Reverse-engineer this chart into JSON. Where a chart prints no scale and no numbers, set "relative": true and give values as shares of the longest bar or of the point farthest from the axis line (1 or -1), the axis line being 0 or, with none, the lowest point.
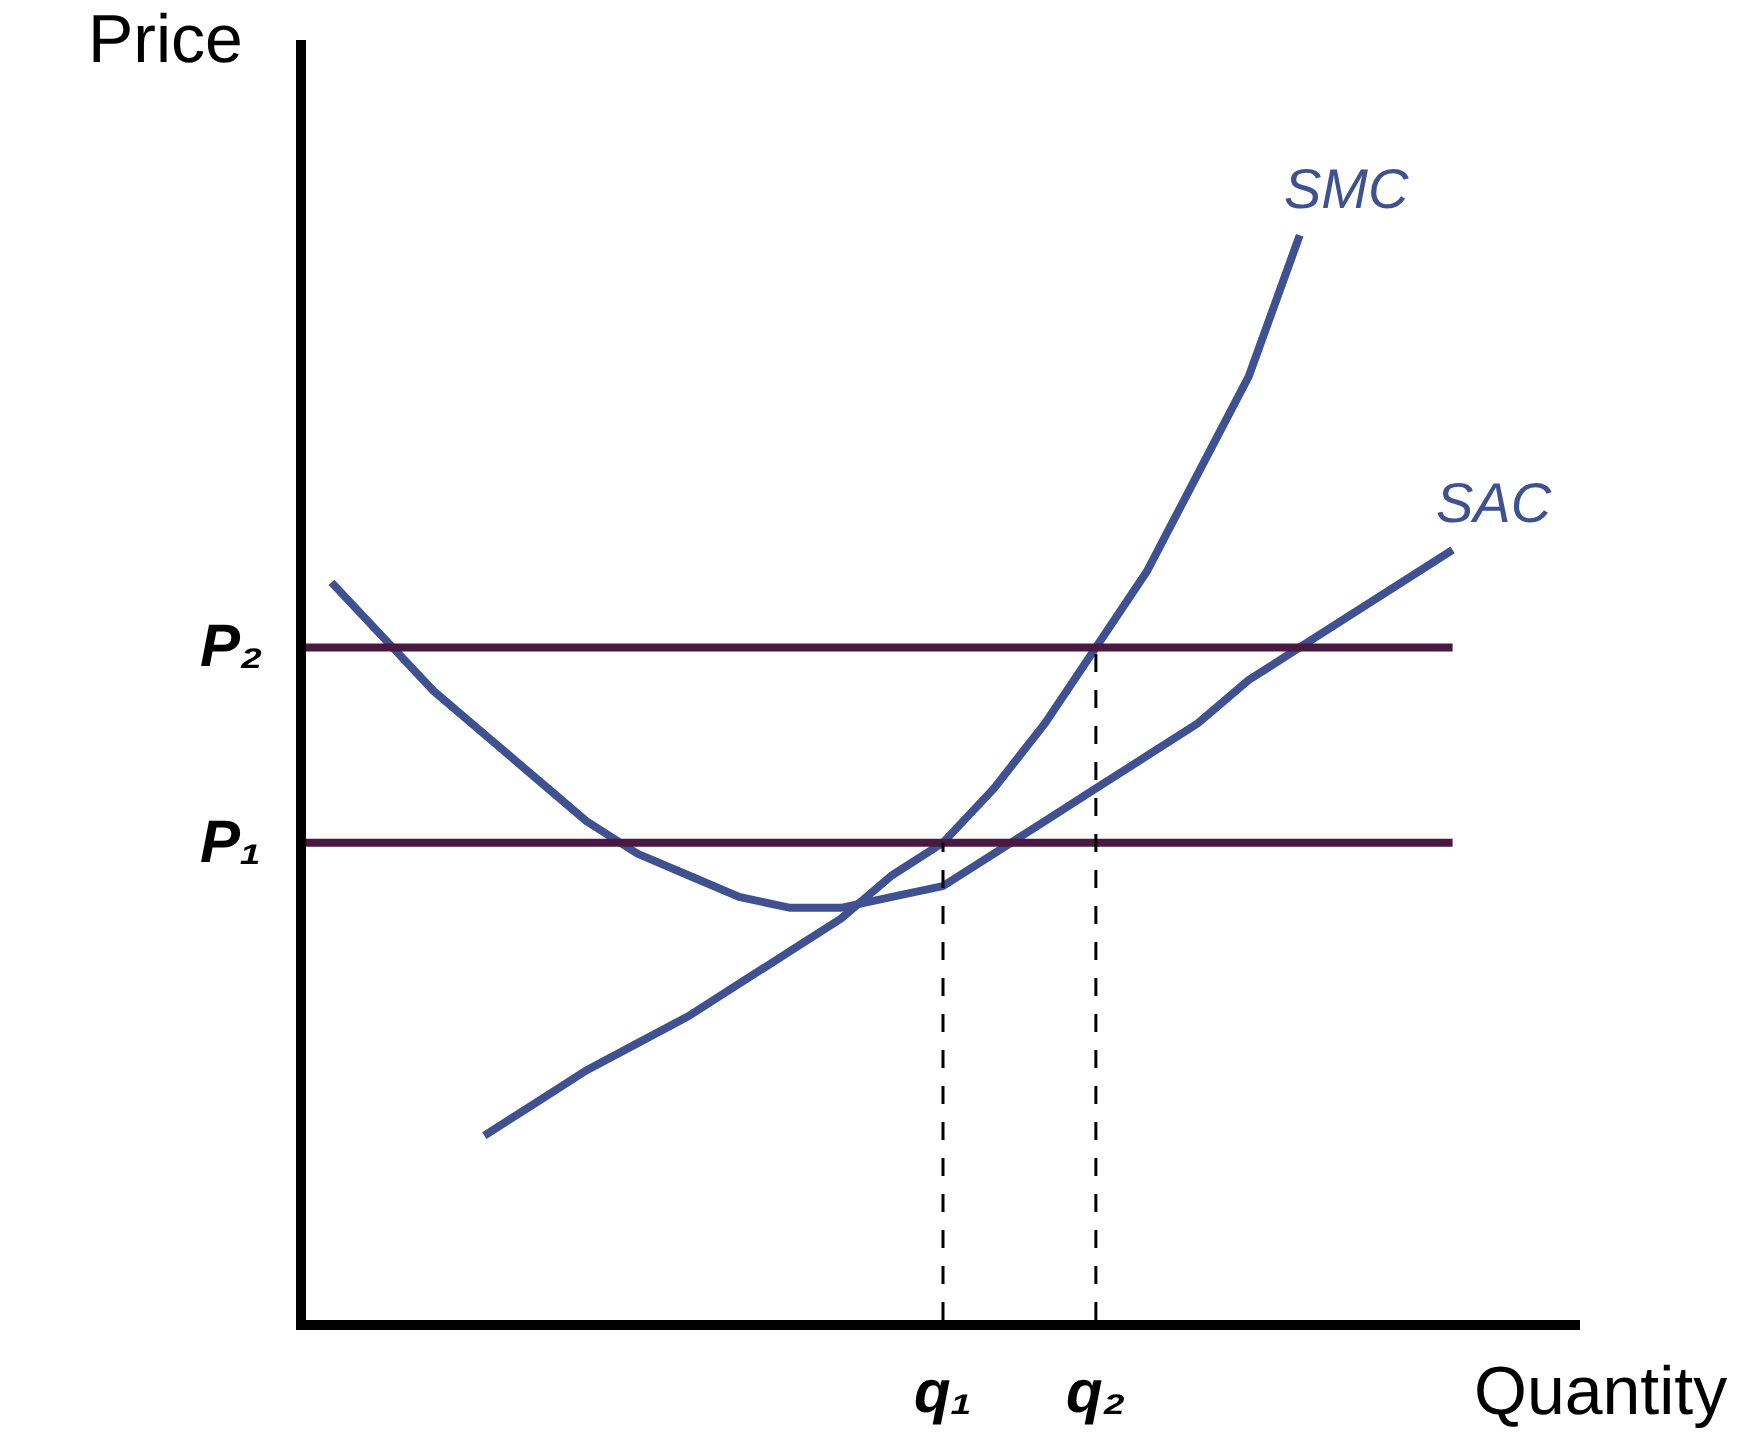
{
  "chart_data": {
    "type": "line",
    "relative": true,
    "xlabel": "Quantity",
    "ylabel": "Price",
    "categories": [
      null,
      null,
      null,
      null,
      null,
      null,
      null,
      null,
      null,
      null,
      null,
      null,
      null,
      null,
      null,
      null,
      null,
      null,
      null,
      null,
      null,
      null,
      null
    ],
    "series": [
      {
        "name": "SMC",
        "color": "#3f5190",
        "values": [
          null,
          null,
          null,
          0.17,
          0.2,
          0.23,
          0.255,
          0.28,
          0.31,
          0.34,
          0.37,
          0.41,
          0.44,
          0.49,
          0.55,
          0.62,
          0.69,
          0.78,
          0.87,
          1.0,
          null,
          null,
          null
        ]
      },
      {
        "name": "SAC",
        "color": "#3f5190",
        "values": [
          0.68,
          0.63,
          0.58,
          0.54,
          0.5,
          0.46,
          0.43,
          0.41,
          0.39,
          0.38,
          0.38,
          0.39,
          0.4,
          0.43,
          0.46,
          0.49,
          0.52,
          0.55,
          0.59,
          0.62,
          0.65,
          0.68,
          0.71
        ]
      }
    ],
    "ref_lines": [
      {
        "axis": "y",
        "value": 0.44,
        "label": "P₁",
        "color": "#4a1942",
        "line_style": "solid"
      },
      {
        "axis": "y",
        "value": 0.62,
        "label": "P₂",
        "color": "#4a1942",
        "line_style": "solid"
      }
    ],
    "annotations": [
      {
        "text": "q₁",
        "y": 0.44
      },
      {
        "text": "q₂",
        "y": 0.62
      }
    ],
    "legend": false,
    "marker": "none",
    "line_style": "solid"
  }
}
